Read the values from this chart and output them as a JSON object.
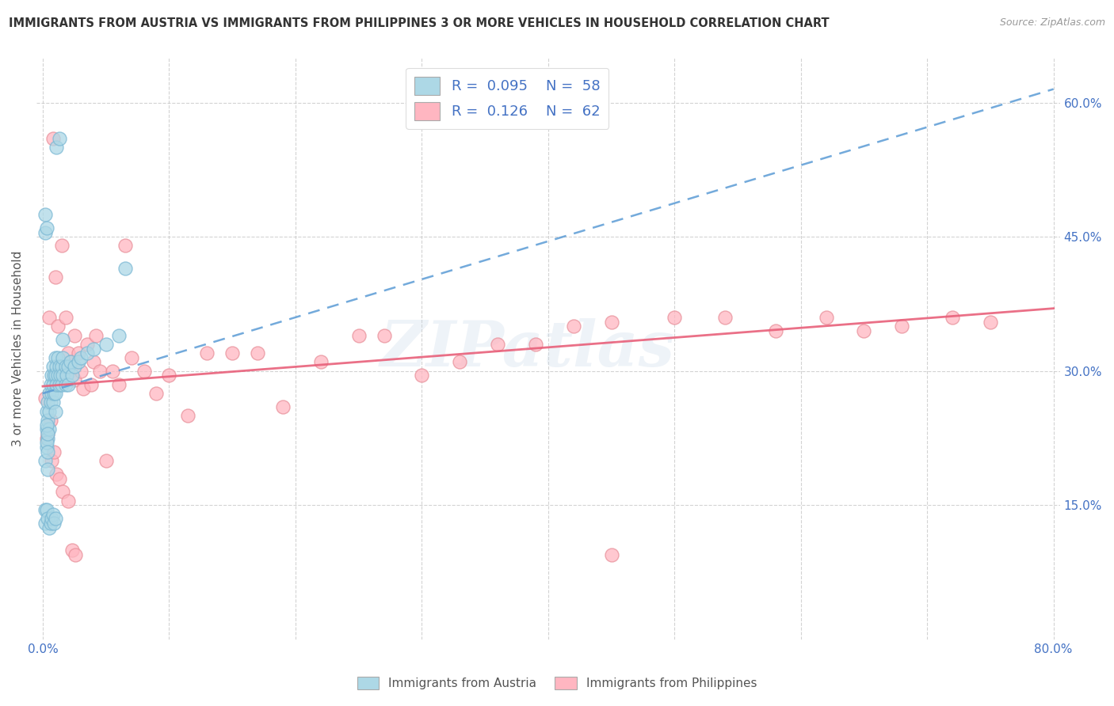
{
  "title": "IMMIGRANTS FROM AUSTRIA VS IMMIGRANTS FROM PHILIPPINES 3 OR MORE VEHICLES IN HOUSEHOLD CORRELATION CHART",
  "source": "Source: ZipAtlas.com",
  "ylabel": "3 or more Vehicles in Household",
  "xlim": [
    -0.005,
    0.805
  ],
  "ylim": [
    0.0,
    0.65
  ],
  "xticks": [
    0.0,
    0.1,
    0.2,
    0.3,
    0.4,
    0.5,
    0.6,
    0.7,
    0.8
  ],
  "xticklabels": [
    "0.0%",
    "",
    "",
    "",
    "",
    "",
    "",
    "",
    "80.0%"
  ],
  "yticks_right": [
    0.15,
    0.3,
    0.45,
    0.6
  ],
  "ytick_right_labels": [
    "15.0%",
    "30.0%",
    "45.0%",
    "60.0%"
  ],
  "austria_color": "#ADD8E6",
  "austria_edge": "#7BB8D4",
  "philippines_color": "#FFB6C1",
  "philippines_edge": "#E8909A",
  "trend_austria_color": "#5B9BD5",
  "trend_philippines_color": "#E8607A",
  "legend_r_austria": "0.095",
  "legend_n_austria": "58",
  "legend_r_philippines": "0.126",
  "legend_n_philippines": "62",
  "watermark": "ZIPatlas",
  "trend_austria_x0": 0.0,
  "trend_austria_y0": 0.275,
  "trend_austria_x1": 0.8,
  "trend_austria_y1": 0.615,
  "trend_phil_x0": 0.0,
  "trend_phil_y0": 0.283,
  "trend_phil_x1": 0.8,
  "trend_phil_y1": 0.37,
  "austria_x": [
    0.003,
    0.003,
    0.003,
    0.004,
    0.004,
    0.004,
    0.005,
    0.005,
    0.005,
    0.006,
    0.006,
    0.007,
    0.007,
    0.008,
    0.008,
    0.008,
    0.009,
    0.009,
    0.01,
    0.01,
    0.01,
    0.01,
    0.011,
    0.011,
    0.012,
    0.012,
    0.013,
    0.013,
    0.014,
    0.015,
    0.015,
    0.016,
    0.016,
    0.018,
    0.018,
    0.019,
    0.02,
    0.02,
    0.022,
    0.023,
    0.025,
    0.028,
    0.03,
    0.035,
    0.04,
    0.05,
    0.06,
    0.065,
    0.002,
    0.002,
    0.003,
    0.004,
    0.005,
    0.006,
    0.007,
    0.008,
    0.009,
    0.01
  ],
  "austria_y": [
    0.235,
    0.255,
    0.215,
    0.245,
    0.265,
    0.225,
    0.275,
    0.255,
    0.235,
    0.285,
    0.265,
    0.275,
    0.295,
    0.285,
    0.305,
    0.265,
    0.295,
    0.275,
    0.295,
    0.315,
    0.275,
    0.255,
    0.305,
    0.285,
    0.315,
    0.295,
    0.305,
    0.285,
    0.295,
    0.305,
    0.285,
    0.295,
    0.315,
    0.305,
    0.285,
    0.295,
    0.305,
    0.285,
    0.31,
    0.295,
    0.305,
    0.31,
    0.315,
    0.32,
    0.325,
    0.33,
    0.34,
    0.415,
    0.13,
    0.145,
    0.145,
    0.135,
    0.125,
    0.13,
    0.135,
    0.14,
    0.13,
    0.135
  ],
  "austria_y_high": [
    0.455,
    0.475,
    0.2,
    0.22,
    0.24,
    0.46,
    0.19,
    0.21,
    0.23,
    0.55,
    0.56,
    0.335
  ],
  "austria_x_high": [
    0.002,
    0.002,
    0.002,
    0.003,
    0.003,
    0.003,
    0.004,
    0.004,
    0.004,
    0.011,
    0.013,
    0.016
  ],
  "philippines_x": [
    0.005,
    0.008,
    0.01,
    0.012,
    0.015,
    0.015,
    0.018,
    0.02,
    0.022,
    0.025,
    0.025,
    0.028,
    0.03,
    0.032,
    0.035,
    0.038,
    0.04,
    0.042,
    0.045,
    0.05,
    0.055,
    0.06,
    0.065,
    0.07,
    0.08,
    0.09,
    0.1,
    0.115,
    0.13,
    0.15,
    0.17,
    0.19,
    0.22,
    0.25,
    0.27,
    0.3,
    0.33,
    0.36,
    0.39,
    0.42,
    0.45,
    0.5,
    0.54,
    0.58,
    0.62,
    0.65,
    0.68,
    0.72,
    0.75,
    0.002,
    0.003,
    0.004,
    0.006,
    0.007,
    0.009,
    0.011,
    0.013,
    0.016,
    0.02,
    0.023,
    0.026,
    0.45
  ],
  "philippines_y": [
    0.36,
    0.56,
    0.405,
    0.35,
    0.44,
    0.3,
    0.36,
    0.32,
    0.31,
    0.34,
    0.29,
    0.32,
    0.3,
    0.28,
    0.33,
    0.285,
    0.31,
    0.34,
    0.3,
    0.2,
    0.3,
    0.285,
    0.44,
    0.315,
    0.3,
    0.275,
    0.295,
    0.25,
    0.32,
    0.32,
    0.32,
    0.26,
    0.31,
    0.34,
    0.34,
    0.295,
    0.31,
    0.33,
    0.33,
    0.35,
    0.355,
    0.36,
    0.36,
    0.345,
    0.36,
    0.345,
    0.35,
    0.36,
    0.355,
    0.27,
    0.225,
    0.23,
    0.245,
    0.2,
    0.21,
    0.185,
    0.18,
    0.165,
    0.155,
    0.1,
    0.095,
    0.095
  ]
}
